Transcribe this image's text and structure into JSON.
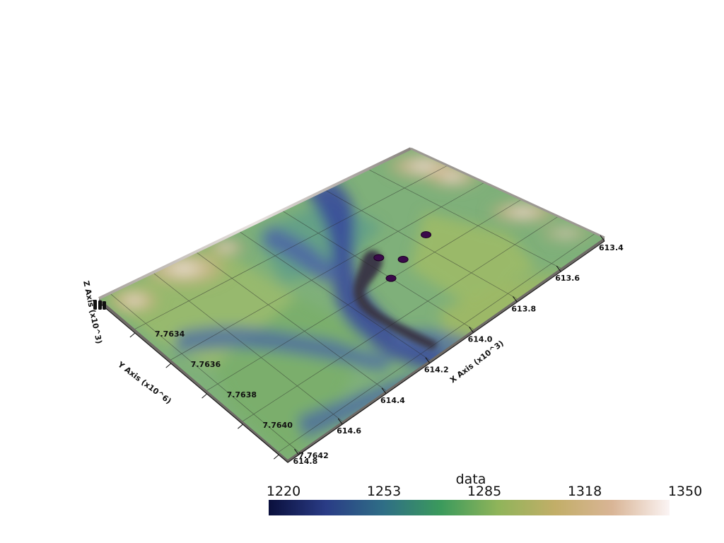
{
  "chart_data": {
    "type": "heatmap",
    "title": "",
    "scalar_name": "data",
    "x_axis": {
      "title": "X Axis (x10^3)",
      "ticks": [
        "613.4",
        "613.6",
        "613.8",
        "614.0",
        "614.2",
        "614.4",
        "614.6",
        "614.8"
      ],
      "range": [
        613.4,
        614.85
      ]
    },
    "y_axis": {
      "title": "Y Axis (x10^6)",
      "ticks": [
        "7.7634",
        "7.7636",
        "7.7638",
        "7.7640",
        "7.7642"
      ],
      "range": [
        7.7632,
        7.7642
      ]
    },
    "z_axis": {
      "title": "Z Axis (x10^3)"
    },
    "colorbar": {
      "title": "data",
      "min": 1220,
      "max": 1350,
      "labels": [
        "1220",
        "1253",
        "1285",
        "1318",
        "1350"
      ],
      "colors": [
        "#0a0f3c",
        "#2a3c86",
        "#2f6e86",
        "#3b9a5c",
        "#8fb45a",
        "#c2ae68",
        "#d9b596",
        "#fbf4f4"
      ]
    },
    "markers": [
      {
        "x": 613.95,
        "y": 7.76365
      },
      {
        "x": 613.9,
        "y": 7.76372
      },
      {
        "x": 613.75,
        "y": 7.76367
      },
      {
        "x": 614.0,
        "y": 7.76377
      }
    ]
  }
}
